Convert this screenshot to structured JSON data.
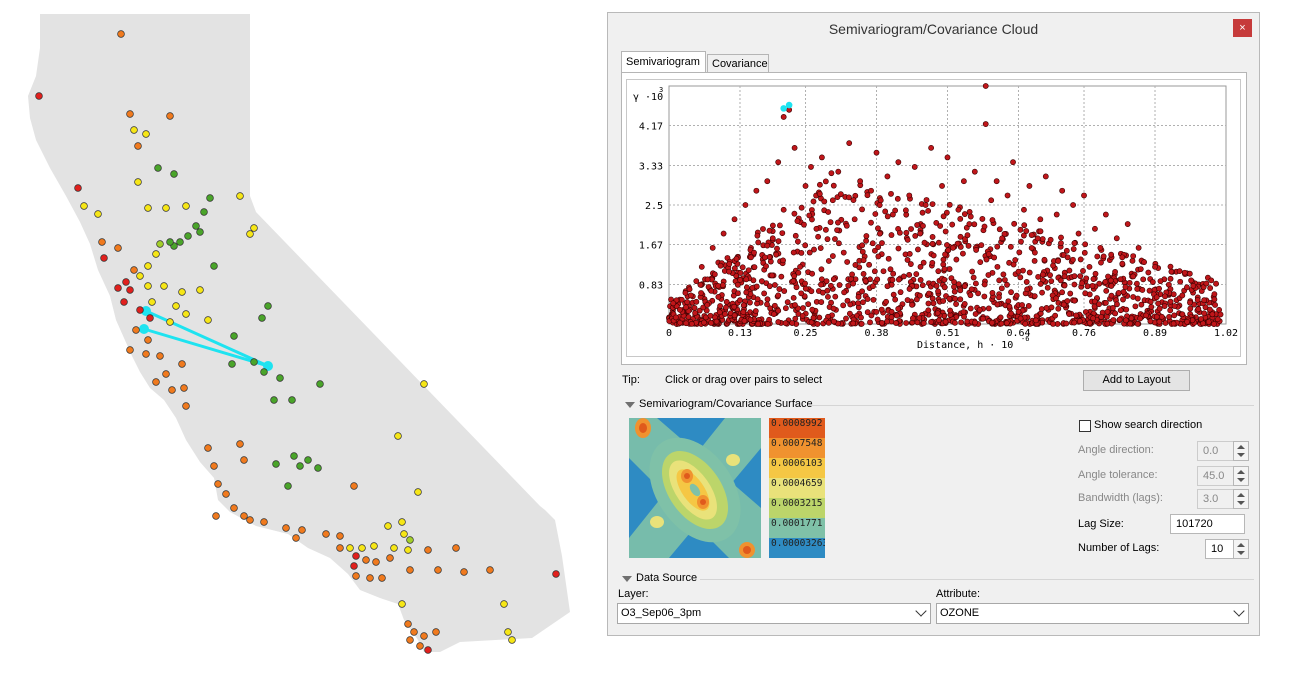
{
  "window": {
    "title": "Semivariogram/Covariance Cloud",
    "close_glyph": "×"
  },
  "tabs": [
    {
      "label": "Semivariogram",
      "active": true
    },
    {
      "label": "Covariance",
      "active": false
    }
  ],
  "chart_data": {
    "type": "scatter",
    "ylabel_prefix": "γ ·10",
    "ylabel_exp": "3",
    "xlabel_prefix": "Distance, h · 10",
    "xlabel_exp": "-6",
    "xlim": [
      0,
      1.02
    ],
    "ylim": [
      0,
      5
    ],
    "x_ticks": [
      "0",
      "0.13",
      "0.25",
      "0.38",
      "0.51",
      "0.64",
      "0.76",
      "0.89",
      "1.02"
    ],
    "y_ticks": [
      "0.83",
      "1.67",
      "2.5",
      "3.33",
      "4.17"
    ],
    "grid": true,
    "point_color": "#c0161a",
    "selected_color": "#1ee3f0",
    "points": [
      [
        0.02,
        0.3
      ],
      [
        0.04,
        0.6
      ],
      [
        0.05,
        0.9
      ],
      [
        0.06,
        1.2
      ],
      [
        0.07,
        0.4
      ],
      [
        0.08,
        1.6
      ],
      [
        0.09,
        0.8
      ],
      [
        0.1,
        1.9
      ],
      [
        0.11,
        1.1
      ],
      [
        0.12,
        2.2
      ],
      [
        0.13,
        0.5
      ],
      [
        0.14,
        2.5
      ],
      [
        0.15,
        1.4
      ],
      [
        0.16,
        2.8
      ],
      [
        0.17,
        0.9
      ],
      [
        0.18,
        3.0
      ],
      [
        0.19,
        1.8
      ],
      [
        0.2,
        3.4
      ],
      [
        0.2,
        0.6
      ],
      [
        0.21,
        2.4
      ],
      [
        0.21,
        4.35
      ],
      [
        0.22,
        4.5
      ],
      [
        0.22,
        4.6
      ],
      [
        0.23,
        3.7
      ],
      [
        0.24,
        1.2
      ],
      [
        0.25,
        2.9
      ],
      [
        0.26,
        3.3
      ],
      [
        0.27,
        2.0
      ],
      [
        0.28,
        3.5
      ],
      [
        0.29,
        0.7
      ],
      [
        0.3,
        2.6
      ],
      [
        0.31,
        3.2
      ],
      [
        0.32,
        1.5
      ],
      [
        0.33,
        3.8
      ],
      [
        0.34,
        2.2
      ],
      [
        0.35,
        3.0
      ],
      [
        0.36,
        0.9
      ],
      [
        0.37,
        2.8
      ],
      [
        0.38,
        3.6
      ],
      [
        0.39,
        1.7
      ],
      [
        0.4,
        3.1
      ],
      [
        0.41,
        2.3
      ],
      [
        0.42,
        3.4
      ],
      [
        0.43,
        1.0
      ],
      [
        0.44,
        2.7
      ],
      [
        0.45,
        3.3
      ],
      [
        0.46,
        1.9
      ],
      [
        0.47,
        2.5
      ],
      [
        0.48,
        3.7
      ],
      [
        0.49,
        0.8
      ],
      [
        0.5,
        2.9
      ],
      [
        0.51,
        3.5
      ],
      [
        0.52,
        1.6
      ],
      [
        0.53,
        2.4
      ],
      [
        0.54,
        3.0
      ],
      [
        0.55,
        2.1
      ],
      [
        0.56,
        3.2
      ],
      [
        0.57,
        1.3
      ],
      [
        0.58,
        4.2
      ],
      [
        0.58,
        5.0
      ],
      [
        0.59,
        2.6
      ],
      [
        0.6,
        3.0
      ],
      [
        0.61,
        1.8
      ],
      [
        0.62,
        2.7
      ],
      [
        0.63,
        3.4
      ],
      [
        0.64,
        1.1
      ],
      [
        0.65,
        2.4
      ],
      [
        0.66,
        2.9
      ],
      [
        0.67,
        1.5
      ],
      [
        0.68,
        2.2
      ],
      [
        0.69,
        3.1
      ],
      [
        0.7,
        0.9
      ],
      [
        0.71,
        2.3
      ],
      [
        0.72,
        2.8
      ],
      [
        0.73,
        1.4
      ],
      [
        0.74,
        2.5
      ],
      [
        0.75,
        1.9
      ],
      [
        0.76,
        2.7
      ],
      [
        0.77,
        1.2
      ],
      [
        0.78,
        2.0
      ],
      [
        0.79,
        1.6
      ],
      [
        0.8,
        2.3
      ],
      [
        0.81,
        0.8
      ],
      [
        0.82,
        1.8
      ],
      [
        0.83,
        1.4
      ],
      [
        0.84,
        2.1
      ],
      [
        0.85,
        1.0
      ],
      [
        0.86,
        1.6
      ],
      [
        0.87,
        1.3
      ],
      [
        0.88,
        0.7
      ],
      [
        0.89,
        1.2
      ],
      [
        0.9,
        0.9
      ],
      [
        0.92,
        1.1
      ],
      [
        0.94,
        0.6
      ],
      [
        0.96,
        0.8
      ],
      [
        0.98,
        0.5
      ],
      [
        1.0,
        0.4
      ],
      [
        1.01,
        0.2
      ]
    ],
    "selected_points": [
      [
        0.21,
        4.53
      ],
      [
        0.22,
        4.6
      ]
    ]
  },
  "tip": {
    "label": "Tip:",
    "text": "Click or drag over pairs to select"
  },
  "add_to_layout_label": "Add to Layout",
  "surface_section": {
    "title": "Semivariogram/Covariance Surface",
    "legend": [
      "0.0008992",
      "0.0007548",
      "0.0006103",
      "0.0004659",
      "0.0003215",
      "0.0001771",
      "0.00003263"
    ],
    "legend_colors": [
      "#e05a1c",
      "#f0922f",
      "#f5c744",
      "#e9e27a",
      "#bcd56a",
      "#7fc1a8",
      "#2e8bc3"
    ]
  },
  "controls": {
    "show_search_direction": "Show search direction",
    "angle_direction_label": "Angle direction:",
    "angle_direction_value": "0.0",
    "angle_tolerance_label": "Angle tolerance:",
    "angle_tolerance_value": "45.0",
    "bandwidth_label": "Bandwidth (lags):",
    "bandwidth_value": "3.0",
    "lag_size_label": "Lag Size:",
    "lag_size_value": "101720",
    "num_lags_label": "Number of Lags:",
    "num_lags_value": "10"
  },
  "data_source": {
    "title": "Data Source",
    "layer_label": "Layer:",
    "layer_value": "O3_Sep06_3pm",
    "attribute_label": "Attribute:",
    "attribute_value": "OZONE"
  },
  "map": {
    "land_color": "#e3e3e3",
    "link_color": "#1ee3f0",
    "station_colors": {
      "red": "#e0201d",
      "orange": "#f07a1e",
      "yellow": "#f6e617",
      "green": "#4aa42a",
      "lightgreen": "#a3cf2a"
    }
  }
}
